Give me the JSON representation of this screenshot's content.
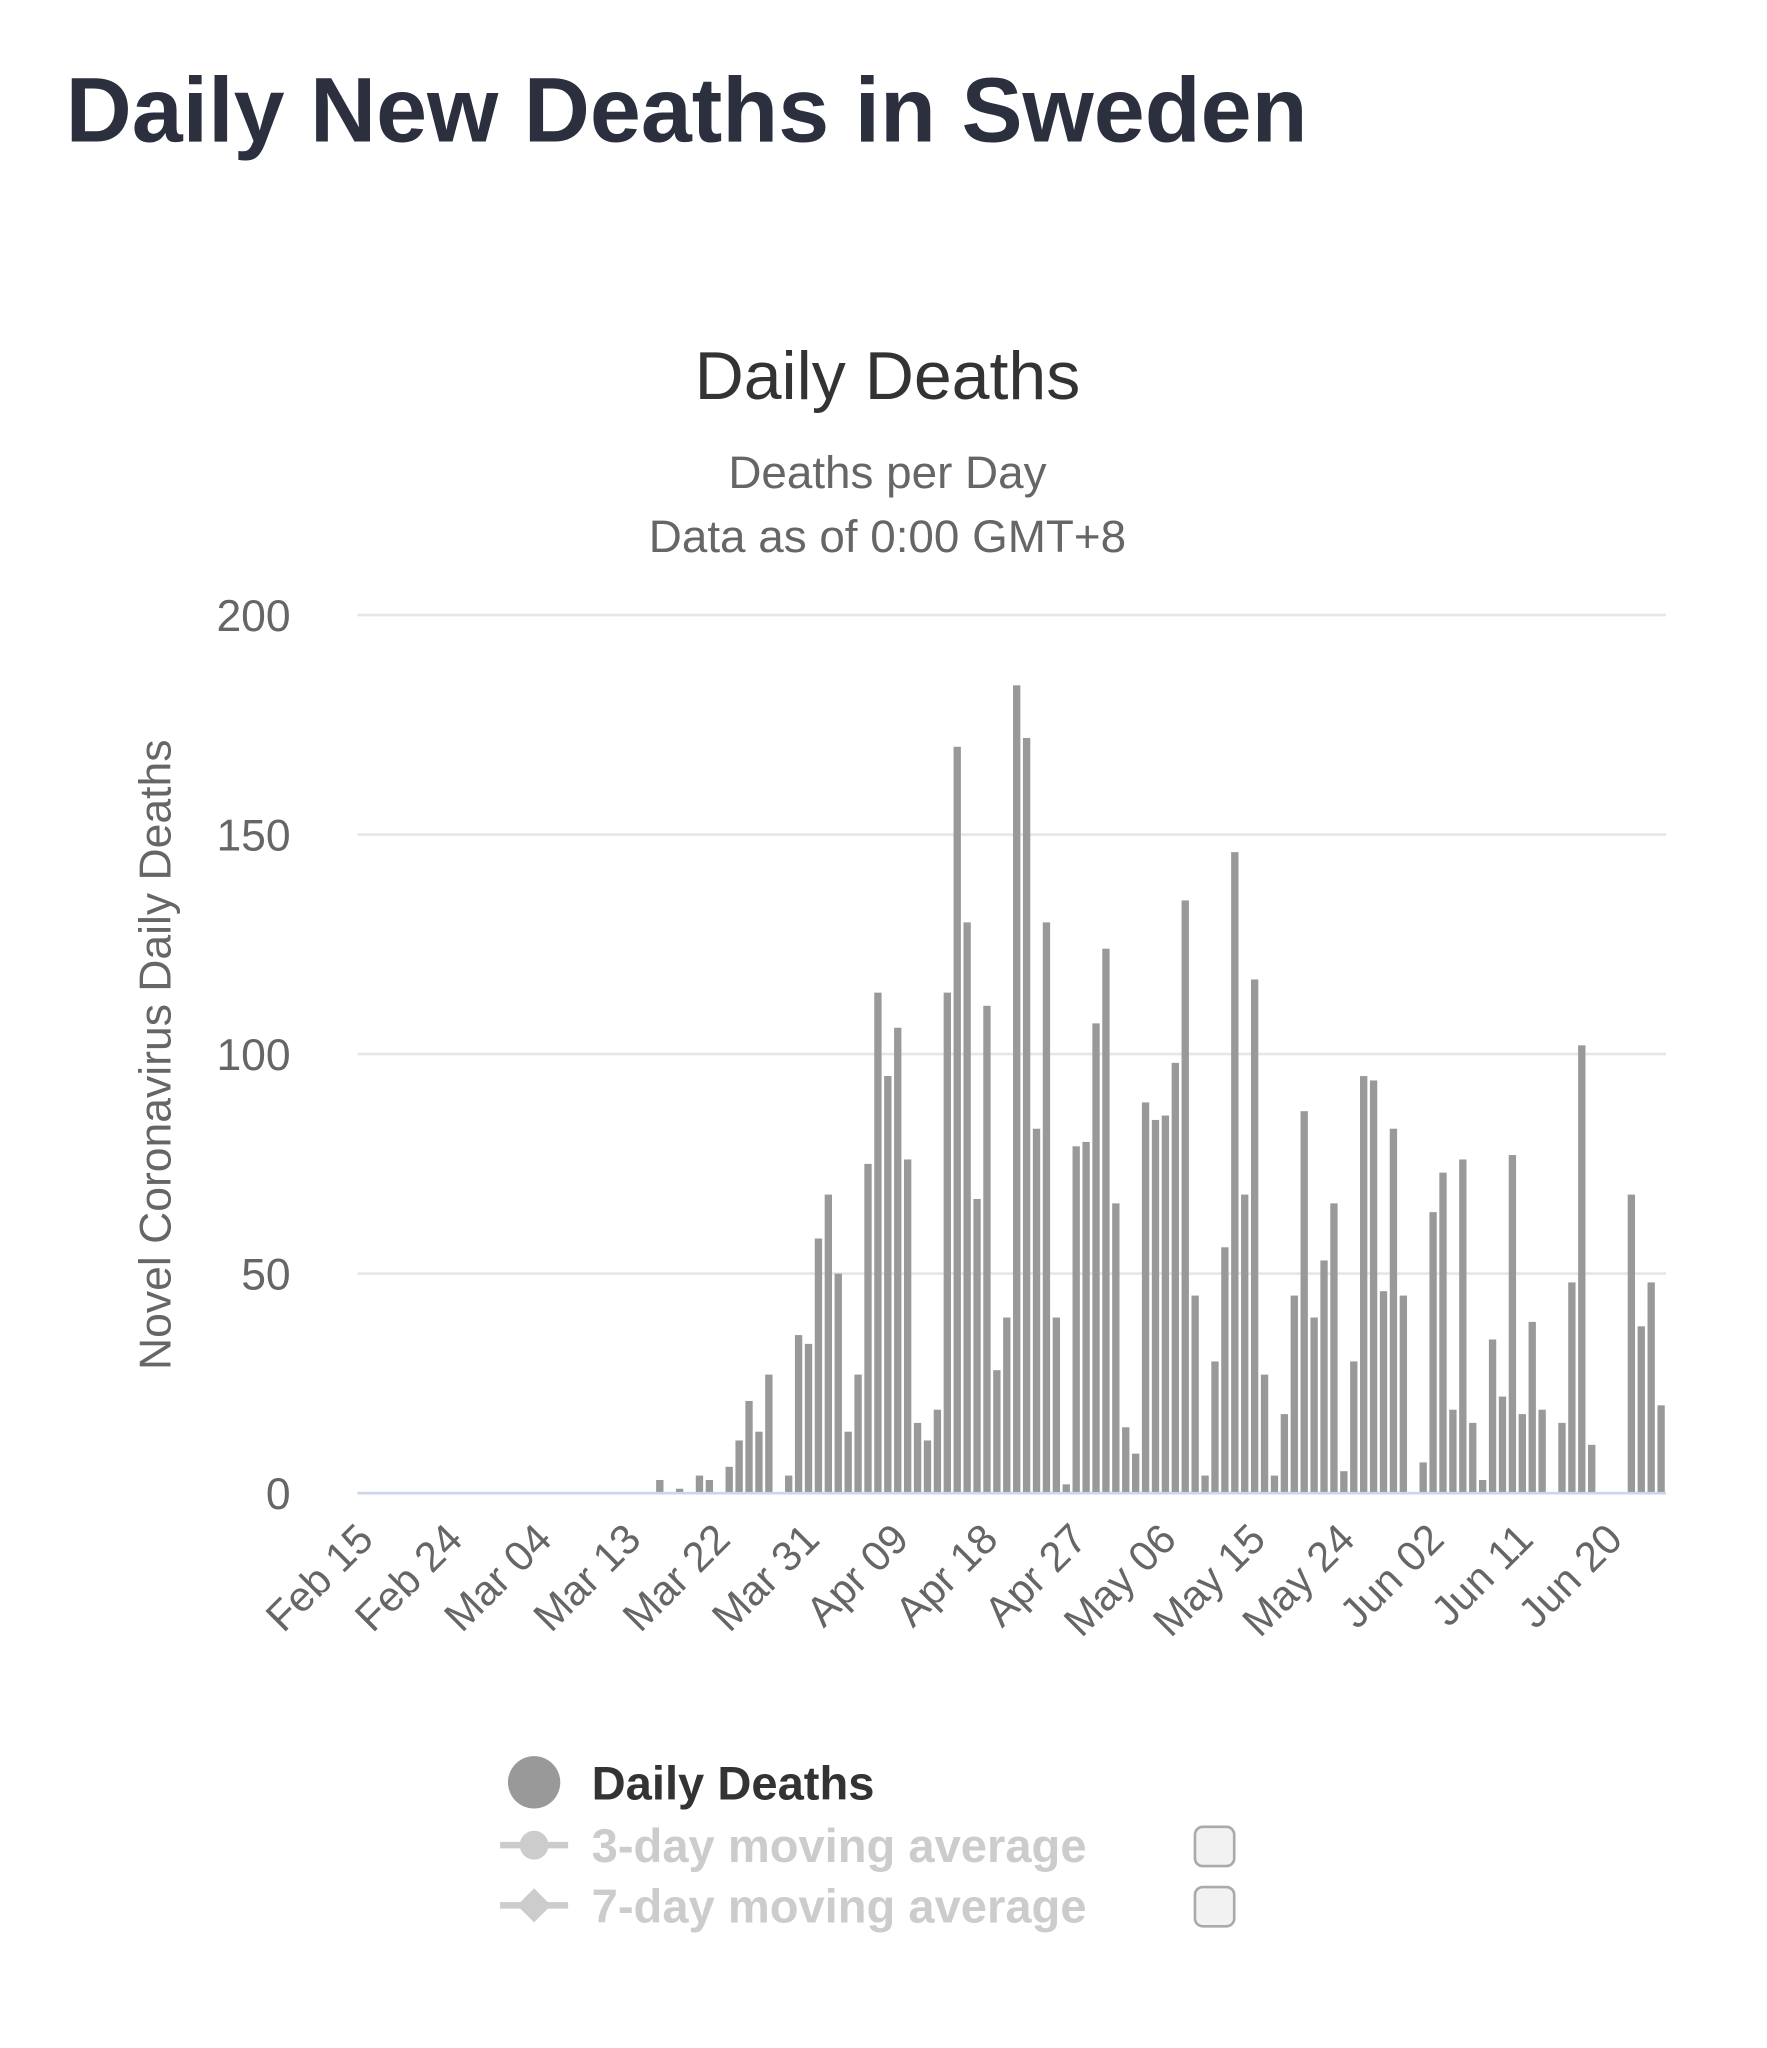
{
  "page_title": "Daily New Deaths in Sweden",
  "chart_data": {
    "type": "bar",
    "title": "Daily Deaths",
    "subtitle": [
      "Deaths per Day",
      "Data as of 0:00 GMT+8"
    ],
    "y_label": "Novel Coronavirus Daily Deaths",
    "categories": [
      "Feb 15",
      null,
      null,
      null,
      null,
      null,
      null,
      null,
      null,
      "Feb 24",
      null,
      null,
      null,
      null,
      null,
      null,
      null,
      null,
      "Mar 04",
      null,
      null,
      null,
      null,
      null,
      null,
      null,
      null,
      "Mar 13",
      null,
      null,
      null,
      null,
      null,
      null,
      null,
      null,
      "Mar 22",
      null,
      null,
      null,
      null,
      null,
      null,
      null,
      null,
      "Mar 31",
      null,
      null,
      null,
      null,
      null,
      null,
      null,
      null,
      "Apr 09",
      null,
      null,
      null,
      null,
      null,
      null,
      null,
      null,
      "Apr 18",
      null,
      null,
      null,
      null,
      null,
      null,
      null,
      null,
      "Apr 27",
      null,
      null,
      null,
      null,
      null,
      null,
      null,
      null,
      "May 06",
      null,
      null,
      null,
      null,
      null,
      null,
      null,
      null,
      "May 15",
      null,
      null,
      null,
      null,
      null,
      null,
      null,
      null,
      "May 24",
      null,
      null,
      null,
      null,
      null,
      null,
      null,
      null,
      "Jun 02",
      null,
      null,
      null,
      null,
      null,
      null,
      null,
      null,
      "Jun 11",
      null,
      null,
      null,
      null,
      null,
      null,
      null,
      null,
      "Jun 20",
      null,
      null,
      null,
      null,
      null
    ],
    "series": [
      {
        "name": "Daily Deaths",
        "color": "#999999",
        "values": [
          0,
          0,
          0,
          0,
          0,
          0,
          0,
          0,
          0,
          0,
          0,
          0,
          0,
          0,
          0,
          0,
          0,
          0,
          0,
          0,
          0,
          0,
          0,
          0,
          0,
          0,
          0,
          0,
          0,
          0,
          3,
          0,
          1,
          0,
          4,
          3,
          0,
          6,
          12,
          21,
          14,
          27,
          0,
          4,
          36,
          34,
          58,
          68,
          50,
          14,
          27,
          75,
          114,
          95,
          106,
          76,
          16,
          12,
          19,
          114,
          170,
          130,
          67,
          111,
          28,
          40,
          184,
          172,
          83,
          130,
          40,
          2,
          79,
          80,
          107,
          124,
          66,
          15,
          9,
          89,
          85,
          86,
          98,
          135,
          45,
          4,
          30,
          56,
          146,
          68,
          117,
          27,
          4,
          18,
          45,
          87,
          40,
          53,
          66,
          5,
          30,
          95,
          94,
          46,
          83,
          45,
          0,
          7,
          64,
          73,
          19,
          76,
          16,
          3,
          35,
          22,
          77,
          18,
          39,
          19,
          0,
          16,
          48,
          102,
          11,
          0,
          0,
          0,
          68,
          38,
          48,
          20
        ]
      }
    ],
    "inactive_legend": [
      "3-day moving average",
      "7-day moving average"
    ],
    "ylim": [
      0,
      200
    ],
    "yticks": [
      0,
      50,
      100,
      150,
      200
    ],
    "grid": true
  }
}
